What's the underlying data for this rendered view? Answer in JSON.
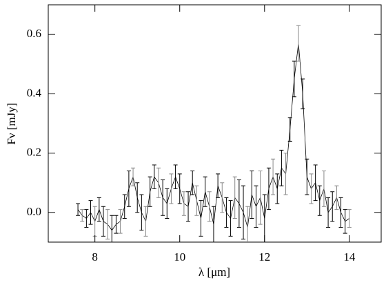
{
  "chart_data": {
    "type": "line",
    "xlabel": "λ [μm]",
    "ylabel": "Fν [mJy]",
    "x": [
      7.6,
      7.7,
      7.8,
      7.9,
      8.0,
      8.1,
      8.2,
      8.3,
      8.4,
      8.5,
      8.6,
      8.7,
      8.8,
      8.9,
      9.0,
      9.1,
      9.2,
      9.3,
      9.4,
      9.5,
      9.6,
      9.7,
      9.8,
      9.9,
      10.0,
      10.1,
      10.2,
      10.3,
      10.4,
      10.5,
      10.6,
      10.7,
      10.8,
      10.9,
      11.0,
      11.1,
      11.2,
      11.3,
      11.4,
      11.5,
      11.6,
      11.7,
      11.8,
      11.9,
      12.0,
      12.1,
      12.2,
      12.3,
      12.4,
      12.5,
      12.6,
      12.7,
      12.8,
      12.9,
      13.0,
      13.1,
      13.2,
      13.3,
      13.4,
      13.5,
      13.6,
      13.7,
      13.8,
      13.9,
      14.0
    ],
    "series": [
      {
        "color": "#000000",
        "values": [
          0.01,
          -0.01,
          -0.02,
          0.0,
          -0.03,
          0.01,
          -0.03,
          -0.04,
          -0.06,
          -0.04,
          -0.03,
          0.02,
          0.08,
          0.12,
          0.05,
          0.0,
          -0.03,
          0.07,
          0.12,
          0.1,
          0.05,
          0.03,
          0.08,
          0.12,
          0.08,
          0.03,
          0.02,
          0.1,
          0.04,
          -0.02,
          0.07,
          0.02,
          -0.04,
          0.09,
          0.05,
          0.0,
          -0.02,
          0.05,
          0.03,
          0.0,
          -0.05,
          0.06,
          0.02,
          0.05,
          -0.02,
          0.08,
          0.12,
          0.08,
          0.15,
          0.13,
          0.28,
          0.45,
          0.57,
          0.4,
          0.12,
          0.08,
          0.1,
          0.04,
          0.08,
          0.0,
          0.02,
          0.05,
          0.0,
          -0.03,
          -0.02
        ],
        "errors": [
          0.02,
          0.02,
          0.03,
          0.04,
          0.05,
          0.04,
          0.05,
          0.05,
          0.05,
          0.03,
          0.04,
          0.04,
          0.06,
          0.03,
          0.05,
          0.06,
          0.05,
          0.05,
          0.04,
          0.05,
          0.06,
          0.05,
          0.05,
          0.04,
          0.05,
          0.04,
          0.05,
          0.04,
          0.05,
          0.06,
          0.05,
          0.05,
          0.06,
          0.04,
          0.05,
          0.05,
          0.06,
          0.07,
          0.08,
          0.09,
          0.07,
          0.08,
          0.07,
          0.09,
          0.08,
          0.07,
          0.06,
          0.05,
          0.06,
          0.07,
          0.04,
          0.06,
          0.06,
          0.05,
          0.06,
          0.05,
          0.06,
          0.05,
          0.06,
          0.05,
          0.05,
          0.04,
          0.05,
          0.04,
          0.03
        ]
      }
    ],
    "xlim": [
      6.9,
      14.75
    ],
    "ylim": [
      -0.1,
      0.7
    ],
    "xticks": [
      8,
      10,
      12,
      14
    ],
    "yticks": [
      {
        "value": 0,
        "label": "0.0"
      },
      0.2,
      0.4,
      0.6
    ]
  }
}
